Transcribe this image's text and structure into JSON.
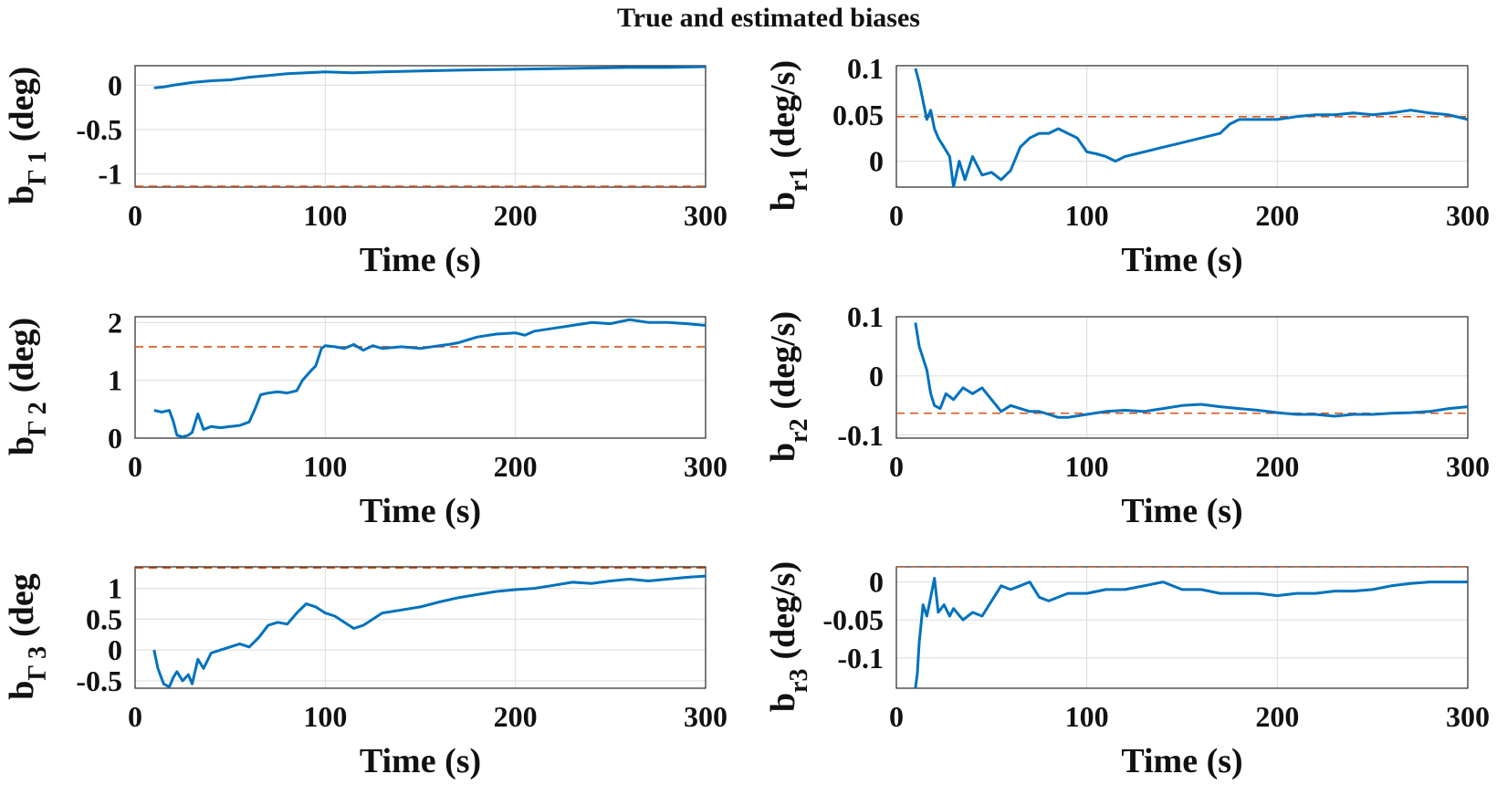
{
  "title": "True and estimated biases",
  "colors": {
    "estimate": "#0072BD",
    "true": "#D95319",
    "grid": "#dcdcdc",
    "axes": "#262626"
  },
  "chart_data": [
    {
      "type": "line",
      "ylabel": {
        "main": "b",
        "sub": "Γ 1",
        "unit": "(deg)"
      },
      "xlabel": "Time (s)",
      "xlim": [
        0,
        300
      ],
      "ylim": [
        -1.15,
        0.22
      ],
      "xticks": [
        0,
        100,
        200,
        300
      ],
      "xtick_labels": [
        "0",
        "100",
        "200",
        "300"
      ],
      "yticks": [
        0,
        -0.5,
        -1
      ],
      "ytick_labels": [
        "0",
        "-0.5",
        "-1"
      ],
      "grid": true,
      "true_value": -1.14,
      "estimate": {
        "x": [
          10,
          15,
          20,
          30,
          40,
          50,
          60,
          70,
          80,
          90,
          100,
          115,
          130,
          150,
          170,
          200,
          230,
          260,
          280,
          300
        ],
        "y": [
          -0.03,
          -0.02,
          0.0,
          0.03,
          0.05,
          0.06,
          0.09,
          0.11,
          0.13,
          0.14,
          0.15,
          0.14,
          0.15,
          0.16,
          0.17,
          0.18,
          0.19,
          0.2,
          0.2,
          0.21
        ]
      }
    },
    {
      "type": "line",
      "ylabel": {
        "main": "b",
        "sub": "r1",
        "unit": "(deg/s)"
      },
      "xlabel": "Time (s)",
      "xlim": [
        0,
        300
      ],
      "ylim": [
        -0.028,
        0.103
      ],
      "xticks": [
        0,
        100,
        200,
        300
      ],
      "xtick_labels": [
        "0",
        "100",
        "200",
        "300"
      ],
      "yticks": [
        0.1,
        0.05,
        0
      ],
      "ytick_labels": [
        "0.1",
        "0.05",
        "0"
      ],
      "grid": true,
      "true_value": 0.048,
      "estimate": {
        "x": [
          10,
          12,
          14,
          16,
          18,
          20,
          22,
          25,
          28,
          30,
          33,
          36,
          40,
          45,
          50,
          55,
          60,
          65,
          70,
          75,
          80,
          85,
          90,
          95,
          100,
          105,
          110,
          115,
          120,
          130,
          140,
          150,
          160,
          170,
          175,
          180,
          190,
          200,
          210,
          220,
          230,
          240,
          250,
          260,
          270,
          280,
          290,
          300
        ],
        "y": [
          0.1,
          0.085,
          0.065,
          0.045,
          0.055,
          0.035,
          0.025,
          0.015,
          0.005,
          -0.028,
          0.0,
          -0.02,
          0.005,
          -0.015,
          -0.012,
          -0.02,
          -0.01,
          0.015,
          0.025,
          0.03,
          0.03,
          0.035,
          0.03,
          0.025,
          0.01,
          0.008,
          0.005,
          0.0,
          0.005,
          0.01,
          0.015,
          0.02,
          0.025,
          0.03,
          0.04,
          0.045,
          0.045,
          0.045,
          0.048,
          0.05,
          0.05,
          0.052,
          0.05,
          0.052,
          0.055,
          0.052,
          0.05,
          0.045
        ]
      }
    },
    {
      "type": "line",
      "ylabel": {
        "main": "b",
        "sub": "Γ 2",
        "unit": "(deg)"
      },
      "xlabel": "Time (s)",
      "xlim": [
        0,
        300
      ],
      "ylim": [
        0,
        2.1
      ],
      "xticks": [
        0,
        100,
        200,
        300
      ],
      "xtick_labels": [
        "0",
        "100",
        "200",
        "300"
      ],
      "yticks": [
        2,
        1,
        0
      ],
      "ytick_labels": [
        "2",
        "1",
        "0"
      ],
      "grid": true,
      "true_value": 1.58,
      "estimate": {
        "x": [
          10,
          14,
          18,
          20,
          22,
          25,
          28,
          30,
          33,
          36,
          40,
          45,
          50,
          55,
          60,
          63,
          66,
          70,
          75,
          80,
          85,
          88,
          92,
          95,
          98,
          100,
          105,
          110,
          115,
          120,
          125,
          130,
          140,
          150,
          160,
          165,
          170,
          175,
          180,
          190,
          200,
          205,
          210,
          220,
          230,
          240,
          250,
          260,
          270,
          280,
          290,
          300
        ],
        "y": [
          0.48,
          0.45,
          0.48,
          0.3,
          0.05,
          0.02,
          0.05,
          0.1,
          0.42,
          0.15,
          0.2,
          0.18,
          0.2,
          0.22,
          0.28,
          0.5,
          0.75,
          0.78,
          0.8,
          0.78,
          0.82,
          1.0,
          1.15,
          1.25,
          1.55,
          1.6,
          1.58,
          1.55,
          1.62,
          1.52,
          1.6,
          1.55,
          1.58,
          1.55,
          1.6,
          1.62,
          1.65,
          1.7,
          1.75,
          1.8,
          1.82,
          1.78,
          1.85,
          1.9,
          1.95,
          2.0,
          1.98,
          2.05,
          2.0,
          2.0,
          1.98,
          1.95
        ]
      }
    },
    {
      "type": "line",
      "ylabel": {
        "main": "b",
        "sub": "r2",
        "unit": "(deg/s)"
      },
      "xlabel": "Time (s)",
      "xlim": [
        0,
        300
      ],
      "ylim": [
        -0.105,
        0.1
      ],
      "xticks": [
        0,
        100,
        200,
        300
      ],
      "xtick_labels": [
        "0",
        "100",
        "200",
        "300"
      ],
      "yticks": [
        0.1,
        0,
        -0.1
      ],
      "ytick_labels": [
        "0.1",
        "0",
        "-0.1"
      ],
      "grid": true,
      "true_value": -0.063,
      "estimate": {
        "x": [
          10,
          12,
          14,
          16,
          18,
          20,
          23,
          26,
          30,
          35,
          40,
          45,
          50,
          55,
          60,
          65,
          70,
          75,
          80,
          85,
          90,
          100,
          110,
          120,
          130,
          140,
          150,
          160,
          170,
          180,
          190,
          200,
          210,
          220,
          230,
          240,
          250,
          260,
          270,
          280,
          290,
          300
        ],
        "y": [
          0.09,
          0.05,
          0.03,
          0.01,
          -0.03,
          -0.05,
          -0.055,
          -0.03,
          -0.04,
          -0.02,
          -0.03,
          -0.02,
          -0.04,
          -0.06,
          -0.05,
          -0.055,
          -0.06,
          -0.06,
          -0.065,
          -0.07,
          -0.07,
          -0.065,
          -0.06,
          -0.058,
          -0.06,
          -0.055,
          -0.05,
          -0.048,
          -0.052,
          -0.055,
          -0.058,
          -0.062,
          -0.065,
          -0.065,
          -0.068,
          -0.065,
          -0.065,
          -0.063,
          -0.062,
          -0.06,
          -0.055,
          -0.052
        ]
      }
    },
    {
      "type": "line",
      "ylabel": {
        "main": "b",
        "sub": "Γ 3",
        "unit": "(deg"
      },
      "xlabel": "Time (s)",
      "xlim": [
        0,
        300
      ],
      "ylim": [
        -0.62,
        1.35
      ],
      "xticks": [
        0,
        100,
        200,
        300
      ],
      "xtick_labels": [
        "0",
        "100",
        "200",
        "300"
      ],
      "yticks": [
        1,
        0.5,
        0,
        -0.5
      ],
      "ytick_labels": [
        "1",
        "0.5",
        "0",
        "-0.5"
      ],
      "grid": true,
      "true_value": 1.33,
      "estimate": {
        "x": [
          10,
          12,
          15,
          18,
          20,
          22,
          25,
          28,
          30,
          33,
          36,
          40,
          45,
          50,
          55,
          60,
          65,
          70,
          75,
          80,
          85,
          90,
          95,
          100,
          105,
          110,
          115,
          120,
          125,
          130,
          140,
          150,
          160,
          170,
          180,
          190,
          200,
          210,
          220,
          230,
          240,
          250,
          260,
          270,
          280,
          290,
          300
        ],
        "y": [
          0.0,
          -0.3,
          -0.55,
          -0.6,
          -0.45,
          -0.35,
          -0.5,
          -0.4,
          -0.55,
          -0.15,
          -0.3,
          -0.05,
          0.0,
          0.05,
          0.1,
          0.05,
          0.2,
          0.4,
          0.45,
          0.42,
          0.6,
          0.75,
          0.7,
          0.6,
          0.55,
          0.45,
          0.35,
          0.4,
          0.5,
          0.6,
          0.65,
          0.7,
          0.78,
          0.85,
          0.9,
          0.95,
          0.98,
          1.0,
          1.05,
          1.1,
          1.08,
          1.12,
          1.15,
          1.12,
          1.15,
          1.18,
          1.2
        ]
      }
    },
    {
      "type": "line",
      "ylabel": {
        "main": "b",
        "sub": "r3",
        "unit": "(deg/s)"
      },
      "xlabel": "Time (s)",
      "xlim": [
        0,
        300
      ],
      "ylim": [
        -0.14,
        0.02
      ],
      "xticks": [
        0,
        100,
        200,
        300
      ],
      "xtick_labels": [
        "0",
        "100",
        "200",
        "300"
      ],
      "yticks": [
        0,
        -0.05,
        -0.1
      ],
      "ytick_labels": [
        "0",
        "-0.05",
        "-0.1"
      ],
      "grid": true,
      "true_value": 0.02,
      "estimate": {
        "x": [
          10,
          11,
          12,
          14,
          16,
          18,
          20,
          22,
          25,
          28,
          30,
          35,
          40,
          45,
          50,
          55,
          60,
          65,
          70,
          75,
          80,
          90,
          100,
          110,
          120,
          130,
          140,
          150,
          160,
          170,
          180,
          190,
          200,
          210,
          220,
          230,
          240,
          250,
          260,
          270,
          280,
          290,
          300
        ],
        "y": [
          -0.14,
          -0.12,
          -0.08,
          -0.03,
          -0.045,
          -0.02,
          0.005,
          -0.04,
          -0.03,
          -0.045,
          -0.035,
          -0.05,
          -0.04,
          -0.045,
          -0.025,
          -0.005,
          -0.01,
          -0.005,
          0.0,
          -0.02,
          -0.025,
          -0.015,
          -0.015,
          -0.01,
          -0.01,
          -0.005,
          0.0,
          -0.01,
          -0.01,
          -0.015,
          -0.015,
          -0.015,
          -0.018,
          -0.015,
          -0.015,
          -0.012,
          -0.012,
          -0.01,
          -0.005,
          -0.002,
          0.0,
          0.0,
          0.0
        ]
      }
    }
  ]
}
